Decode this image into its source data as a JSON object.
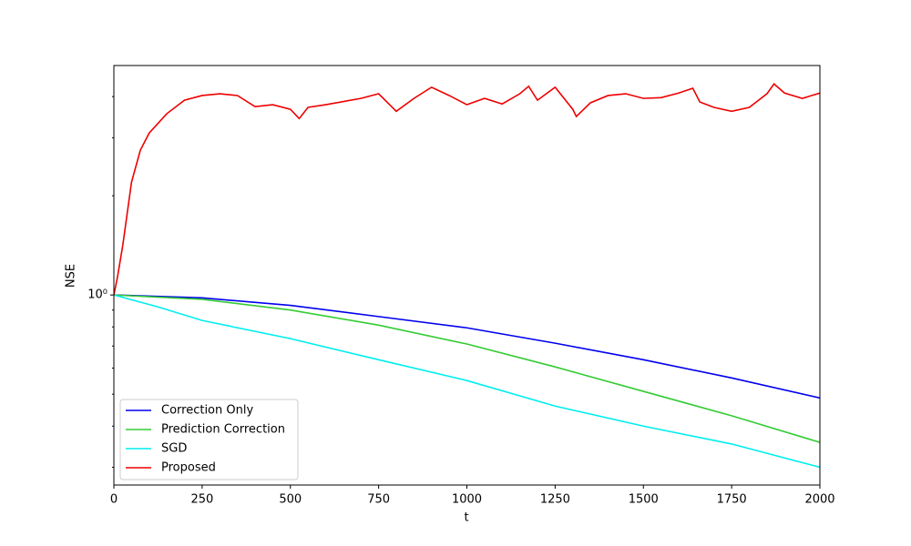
{
  "chart_data": {
    "type": "line",
    "xlabel": "t",
    "ylabel": "NSE",
    "xlim": [
      0,
      2000
    ],
    "xticks": [
      0,
      250,
      500,
      750,
      1000,
      1250,
      1500,
      1750,
      2000
    ],
    "ylim": [
      0.265,
      4.97
    ],
    "log_y": true,
    "yticks": [
      {
        "value": 1,
        "label": "10⁰"
      }
    ],
    "minor_yticks": [
      0.3,
      0.4,
      0.5,
      0.6,
      0.7,
      0.8,
      0.9,
      2,
      3,
      4
    ],
    "legend": "lower left",
    "series": [
      {
        "name": "Correction Only",
        "color": "#0000ee",
        "x": [
          0,
          250,
          500,
          750,
          1000,
          1250,
          1500,
          1750,
          2000
        ],
        "values": [
          1.0,
          0.98,
          0.93,
          0.86,
          0.795,
          0.714,
          0.636,
          0.56,
          0.487
        ]
      },
      {
        "name": "Prediction Correction",
        "color": "#33cc33",
        "x": [
          0,
          250,
          500,
          750,
          1000,
          1250,
          1500,
          1750,
          2000
        ],
        "values": [
          1.0,
          0.97,
          0.9,
          0.81,
          0.71,
          0.605,
          0.51,
          0.43,
          0.357
        ]
      },
      {
        "name": "SGD",
        "color": "#00eeee",
        "x": [
          0,
          125,
          250,
          500,
          750,
          1000,
          1250,
          1500,
          1750,
          2000
        ],
        "values": [
          1.0,
          0.92,
          0.837,
          0.737,
          0.636,
          0.55,
          0.46,
          0.4,
          0.353,
          0.3
        ]
      },
      {
        "name": "Proposed",
        "color": "#ee0000",
        "x": [
          0,
          10,
          25,
          50,
          75,
          100,
          150,
          200,
          250,
          300,
          350,
          400,
          450,
          500,
          525,
          550,
          600,
          700,
          750,
          800,
          850,
          900,
          950,
          1000,
          1050,
          1100,
          1150,
          1175,
          1200,
          1250,
          1300,
          1310,
          1350,
          1400,
          1450,
          1500,
          1550,
          1600,
          1640,
          1660,
          1700,
          1750,
          1800,
          1850,
          1870,
          1900,
          1950,
          2000
        ],
        "values": [
          1.0,
          1.13,
          1.41,
          2.2,
          2.75,
          3.1,
          3.55,
          3.9,
          4.03,
          4.08,
          4.03,
          3.73,
          3.78,
          3.66,
          3.43,
          3.71,
          3.78,
          3.95,
          4.08,
          3.61,
          3.95,
          4.27,
          4.03,
          3.78,
          3.95,
          3.8,
          4.08,
          4.3,
          3.9,
          4.27,
          3.66,
          3.48,
          3.83,
          4.03,
          4.08,
          3.95,
          3.97,
          4.1,
          4.24,
          3.85,
          3.71,
          3.61,
          3.71,
          4.08,
          4.37,
          4.1,
          3.95,
          4.1
        ]
      }
    ]
  }
}
